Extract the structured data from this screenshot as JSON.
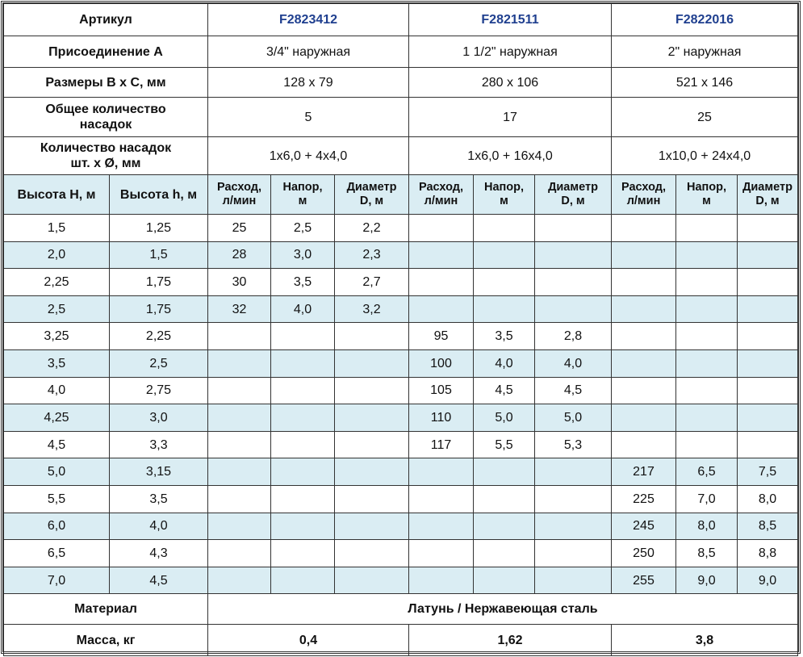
{
  "header": {
    "article_label": "Артикул",
    "articles": [
      "F2823412",
      "F2821511",
      "F2822016"
    ],
    "connection_label": "Присоединение А",
    "connections": [
      "3/4\" наружная",
      "1 1/2\" наружная",
      "2\" наружная"
    ],
    "size_label": "Размеры В х С, мм",
    "sizes": [
      "128 x 79",
      "280 x 106",
      "521 x 146"
    ],
    "total_nozzles_label": [
      "Общее количество",
      "насадок"
    ],
    "total_nozzles": [
      "5",
      "17",
      "25"
    ],
    "nozzles_label": [
      "Количество насадок",
      "шт. х Ø, мм"
    ],
    "nozzles": [
      "1х6,0 + 4х4,0",
      "1х6,0 + 16х4,0",
      "1х10,0 + 24х4,0"
    ]
  },
  "columns": {
    "height_H": "Высота H, м",
    "height_h": "Высота h, м",
    "flow": [
      "Расход,",
      "л/мин"
    ],
    "head": [
      "Напор,",
      "м"
    ],
    "diameter": [
      "Диаметр",
      "D, м"
    ]
  },
  "rows": [
    [
      "1,5",
      "1,25",
      "25",
      "2,5",
      "2,2",
      "",
      "",
      "",
      "",
      "",
      ""
    ],
    [
      "2,0",
      "1,5",
      "28",
      "3,0",
      "2,3",
      "",
      "",
      "",
      "",
      "",
      ""
    ],
    [
      "2,25",
      "1,75",
      "30",
      "3,5",
      "2,7",
      "",
      "",
      "",
      "",
      "",
      ""
    ],
    [
      "2,5",
      "1,75",
      "32",
      "4,0",
      "3,2",
      "",
      "",
      "",
      "",
      "",
      ""
    ],
    [
      "3,25",
      "2,25",
      "",
      "",
      "",
      "95",
      "3,5",
      "2,8",
      "",
      "",
      ""
    ],
    [
      "3,5",
      "2,5",
      "",
      "",
      "",
      "100",
      "4,0",
      "4,0",
      "",
      "",
      ""
    ],
    [
      "4,0",
      "2,75",
      "",
      "",
      "",
      "105",
      "4,5",
      "4,5",
      "",
      "",
      ""
    ],
    [
      "4,25",
      "3,0",
      "",
      "",
      "",
      "110",
      "5,0",
      "5,0",
      "",
      "",
      ""
    ],
    [
      "4,5",
      "3,3",
      "",
      "",
      "",
      "117",
      "5,5",
      "5,3",
      "",
      "",
      ""
    ],
    [
      "5,0",
      "3,15",
      "",
      "",
      "",
      "",
      "",
      "",
      "217",
      "6,5",
      "7,5"
    ],
    [
      "5,5",
      "3,5",
      "",
      "",
      "",
      "",
      "",
      "",
      "225",
      "7,0",
      "8,0"
    ],
    [
      "6,0",
      "4,0",
      "",
      "",
      "",
      "",
      "",
      "",
      "245",
      "8,0",
      "8,5"
    ],
    [
      "6,5",
      "4,3",
      "",
      "",
      "",
      "",
      "",
      "",
      "250",
      "8,5",
      "8,8"
    ],
    [
      "7,0",
      "4,5",
      "",
      "",
      "",
      "",
      "",
      "",
      "255",
      "9,0",
      "9,0"
    ]
  ],
  "footer": {
    "material_label": "Материал",
    "material": "Латунь / Нержавеющая сталь",
    "mass_label": "Масса, кг",
    "masses": [
      "0,4",
      "1,62",
      "3,8"
    ]
  },
  "colors": {
    "article": "#1f3f8f",
    "stripe": "#daedf3",
    "border": "#333333"
  }
}
